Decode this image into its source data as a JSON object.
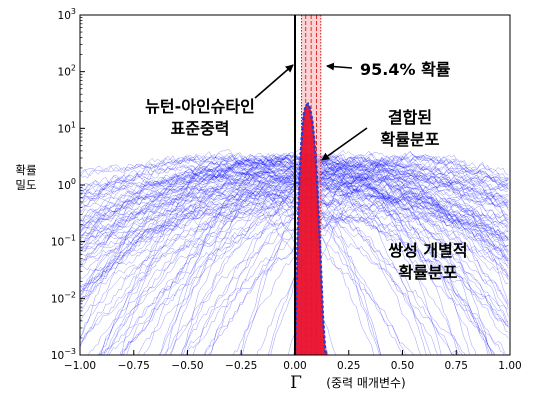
{
  "chart_data": {
    "type": "line",
    "title": "",
    "xlabel": "Γ",
    "xlabel_note": "(중력 매개변수)",
    "ylabel": "확률\n밀도",
    "ylabel_lines": [
      "확률",
      "밀도"
    ],
    "yscale": "log",
    "xlim": [
      -1.0,
      1.0
    ],
    "ylim_exponent": [
      -3,
      3
    ],
    "x_ticks": [
      -1.0,
      -0.75,
      -0.5,
      -0.25,
      0.0,
      0.25,
      0.5,
      0.75,
      1.0
    ],
    "x_tick_labels": [
      "−1.00",
      "−0.75",
      "−0.50",
      "−0.25",
      "0.00",
      "0.25",
      "0.50",
      "0.75",
      "1.00"
    ],
    "y_ticks": [
      {
        "base": "10",
        "exp": "−3"
      },
      {
        "base": "10",
        "exp": "−2"
      },
      {
        "base": "10",
        "exp": "−1"
      },
      {
        "base": "10",
        "exp": "0"
      },
      {
        "base": "10",
        "exp": "1"
      },
      {
        "base": "10",
        "exp": "2"
      },
      {
        "base": "10",
        "exp": "3"
      }
    ],
    "newton_einstein_x": 0.0,
    "band_95": [
      0.03,
      0.12
    ],
    "band_lines": [
      0.03,
      0.05,
      0.075,
      0.1,
      0.12
    ],
    "combined": {
      "name": "결합된 확률분포",
      "x": [
        0.0,
        0.01,
        0.02,
        0.03,
        0.04,
        0.05,
        0.06,
        0.07,
        0.08,
        0.09,
        0.1,
        0.11,
        0.12,
        0.13,
        0.14,
        0.15
      ],
      "y": [
        0.001,
        0.05,
        1.2,
        6.0,
        17.0,
        25.0,
        27.0,
        22.0,
        14.0,
        6.0,
        1.8,
        0.3,
        0.04,
        0.005,
        0.0012,
        0.001
      ]
    },
    "annotations": [
      {
        "text": "95.4% 확률"
      },
      {
        "lines": [
          "뉴턴-아인슈타인",
          "표준중력"
        ]
      },
      {
        "lines": [
          "결합된",
          "확률분포"
        ]
      },
      {
        "lines": [
          "쌍성 개별적",
          "확률분포"
        ]
      }
    ],
    "colors": {
      "individual": "#0000ff",
      "combined_fill": "#e8112d",
      "combined_line": "#1f3fd6",
      "newton_line": "#000000",
      "band": "#dd0000"
    }
  }
}
